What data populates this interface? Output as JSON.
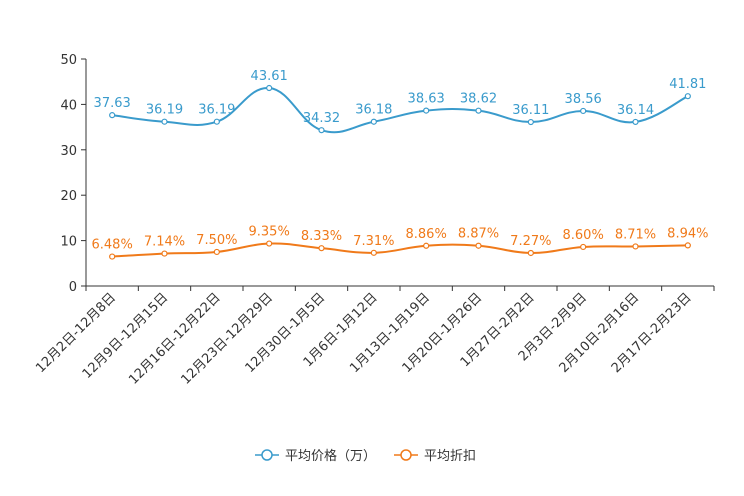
{
  "chart_data": {
    "type": "line",
    "title": "",
    "xlabel": "",
    "ylabel": "",
    "ylim": [
      0,
      50
    ],
    "yticks": [
      0,
      10,
      20,
      30,
      40,
      50
    ],
    "grid": false,
    "legend_position": "bottom-center",
    "categories": [
      "12月2日-12月8日",
      "12月9日-12月15日",
      "12月16日-12月22日",
      "12月23日-12月29日",
      "12月30日-1月5日",
      "1月6日-1月12日",
      "1月13日-1月19日",
      "1月20日-1月26日",
      "1月27日-2月2日",
      "2月3日-2月9日",
      "2月10日-2月16日",
      "2月17日-2月23日"
    ],
    "series": [
      {
        "name": "平均价格（万）",
        "color": "#3a9bcc",
        "values": [
          37.63,
          36.19,
          36.19,
          43.61,
          34.32,
          36.18,
          38.63,
          38.62,
          36.11,
          38.56,
          36.14,
          41.81
        ],
        "labels": [
          "37.63",
          "36.19",
          "36.19",
          "43.61",
          "34.32",
          "36.18",
          "38.63",
          "38.62",
          "36.11",
          "38.56",
          "36.14",
          "41.81"
        ]
      },
      {
        "name": "平均折扣",
        "color": "#f07a1a",
        "values": [
          6.48,
          7.14,
          7.5,
          9.35,
          8.33,
          7.31,
          8.86,
          8.87,
          7.27,
          8.6,
          8.71,
          8.94
        ],
        "labels": [
          "6.48%",
          "7.14%",
          "7.50%",
          "9.35%",
          "8.33%",
          "7.31%",
          "8.86%",
          "8.87%",
          "7.27%",
          "8.60%",
          "8.71%",
          "8.94%"
        ]
      }
    ]
  }
}
